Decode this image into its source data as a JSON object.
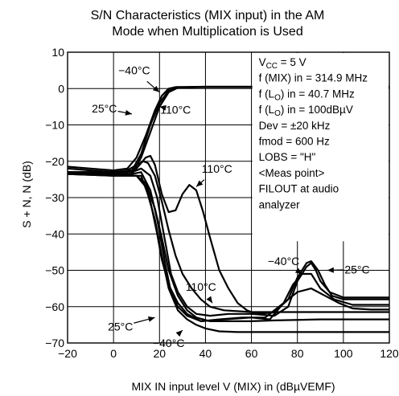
{
  "chart_data": {
    "type": "line",
    "title_lines": [
      "S/N Characteristics (MIX input) in the AM",
      "Mode when Multiplication is Used"
    ],
    "xlabel": "MIX IN input level   V (MIX) in   (dBµVEMF)",
    "ylabel": "S + N, N   (dB)",
    "xlim": [
      -20,
      120
    ],
    "ylim": [
      -70,
      10
    ],
    "xticks": [
      -20,
      0,
      20,
      40,
      60,
      80,
      100,
      120
    ],
    "yticks": [
      10,
      0,
      -10,
      -20,
      -30,
      -40,
      -50,
      -60,
      -70
    ],
    "grid": true,
    "conditions": [
      {
        "main": "V",
        "sub": "CC",
        "rest": " = 5 V"
      },
      {
        "main": "f (MIX) in = 314.9 MHz",
        "sub": "",
        "rest": ""
      },
      {
        "main": "f (L",
        "sub": "O",
        "rest": ") in = 40.7 MHz"
      },
      {
        "main": "f (L",
        "sub": "O",
        "rest": ") in = 100dBµV"
      },
      {
        "main": "Dev = ±20 kHz",
        "sub": "",
        "rest": ""
      },
      {
        "main": "fmod = 600 Hz",
        "sub": "",
        "rest": ""
      },
      {
        "main": "LOBS = \"H\"",
        "sub": "",
        "rest": ""
      },
      {
        "main": "<Meas point>",
        "sub": "",
        "rest": ""
      },
      {
        "main": "FILOUT at audio",
        "sub": "",
        "rest": ""
      },
      {
        "main": "analyzer",
        "sub": "",
        "rest": ""
      }
    ],
    "annotations": [
      {
        "text": "−40°C",
        "x": 9,
        "y": 5,
        "ax": 20,
        "ay": -1
      },
      {
        "text": "25°C",
        "x": -4,
        "y": -5.5,
        "ax": 8,
        "ay": -7
      },
      {
        "text": "110°C",
        "x": 27,
        "y": -5.8,
        "ax": 20,
        "ay": -5,
        "arrow_left": true
      },
      {
        "text": "110°C",
        "x": 45,
        "y": -22,
        "ax": 36,
        "ay": -27
      },
      {
        "text": "−40°C",
        "x": 74,
        "y": -47.5,
        "ax": 82,
        "ay": -51
      },
      {
        "text": "25°C",
        "x": 106,
        "y": -49.8,
        "ax": 93,
        "ay": -50
      },
      {
        "text": "110°C",
        "x": 38,
        "y": -54.5,
        "ax": 43,
        "ay": -59
      },
      {
        "text": "25°C",
        "x": 3,
        "y": -65.5,
        "ax": 18,
        "ay": -63
      },
      {
        "text": "−40°C",
        "x": 24,
        "y": -70,
        "ax": 30,
        "ay": -66.5
      }
    ],
    "series": [
      {
        "values": [
          [
            -20,
            -21.5
          ],
          [
            -10,
            -22
          ],
          [
            0,
            -22.5
          ],
          [
            6,
            -22
          ],
          [
            10,
            -19
          ],
          [
            14,
            -13
          ],
          [
            18,
            -6
          ],
          [
            21,
            -2
          ],
          [
            24,
            0
          ],
          [
            27,
            0.4
          ],
          [
            40,
            0.5
          ],
          [
            120,
            0.5
          ]
        ]
      },
      {
        "values": [
          [
            -20,
            -22
          ],
          [
            -10,
            -22.5
          ],
          [
            0,
            -23
          ],
          [
            8,
            -22.5
          ],
          [
            12,
            -18
          ],
          [
            16,
            -10
          ],
          [
            20,
            -4
          ],
          [
            24,
            -0.5
          ],
          [
            28,
            0.3
          ],
          [
            40,
            0.5
          ],
          [
            120,
            0.5
          ]
        ]
      },
      {
        "values": [
          [
            -20,
            -23
          ],
          [
            -10,
            -23.5
          ],
          [
            0,
            -24
          ],
          [
            8,
            -23.5
          ],
          [
            12,
            -19
          ],
          [
            16,
            -12
          ],
          [
            20,
            -5
          ],
          [
            24,
            -1
          ],
          [
            28,
            0.2
          ],
          [
            40,
            0.4
          ],
          [
            120,
            0.4
          ]
        ]
      },
      {
        "values": [
          [
            -20,
            -23
          ],
          [
            0,
            -23
          ],
          [
            6,
            -23
          ],
          [
            10,
            -22
          ],
          [
            14,
            -19
          ],
          [
            16,
            -18.5
          ],
          [
            18,
            -21
          ],
          [
            21,
            -29
          ],
          [
            24,
            -34
          ],
          [
            27,
            -33.5
          ],
          [
            30,
            -29
          ],
          [
            33,
            -26.5
          ],
          [
            36,
            -28
          ],
          [
            39,
            -34
          ],
          [
            42,
            -41
          ],
          [
            46,
            -50
          ],
          [
            50,
            -55
          ],
          [
            54,
            -59
          ],
          [
            58,
            -61
          ],
          [
            62,
            -62
          ],
          [
            72,
            -61.5
          ],
          [
            120,
            -61.5
          ]
        ]
      },
      {
        "values": [
          [
            -20,
            -23
          ],
          [
            0,
            -23
          ],
          [
            6,
            -22.5
          ],
          [
            10,
            -21
          ],
          [
            13,
            -20
          ],
          [
            15,
            -20.5
          ],
          [
            18,
            -24
          ],
          [
            21,
            -31
          ],
          [
            24,
            -39
          ],
          [
            27,
            -46
          ],
          [
            30,
            -51
          ],
          [
            34,
            -55
          ],
          [
            38,
            -58
          ],
          [
            42,
            -60
          ],
          [
            48,
            -61
          ],
          [
            60,
            -61.5
          ],
          [
            70,
            -61.5
          ],
          [
            76,
            -58
          ],
          [
            80,
            -52
          ],
          [
            84,
            -48
          ],
          [
            86,
            -47.5
          ],
          [
            89,
            -50
          ],
          [
            92,
            -54
          ],
          [
            95,
            -57
          ],
          [
            100,
            -58
          ],
          [
            110,
            -58
          ],
          [
            120,
            -58
          ]
        ]
      },
      {
        "values": [
          [
            -20,
            -23
          ],
          [
            0,
            -23
          ],
          [
            8,
            -23
          ],
          [
            12,
            -22
          ],
          [
            16,
            -24
          ],
          [
            19,
            -30
          ],
          [
            21,
            -37
          ],
          [
            23,
            -44
          ],
          [
            25,
            -51
          ],
          [
            28,
            -56
          ],
          [
            32,
            -60
          ],
          [
            36,
            -62
          ],
          [
            42,
            -62.5
          ],
          [
            50,
            -62
          ],
          [
            60,
            -62
          ],
          [
            70,
            -62.5
          ],
          [
            76,
            -60
          ],
          [
            80,
            -53
          ],
          [
            84,
            -49
          ],
          [
            86,
            -48
          ],
          [
            88,
            -50
          ],
          [
            90,
            -53
          ],
          [
            94,
            -56
          ],
          [
            100,
            -57.5
          ],
          [
            110,
            -57.5
          ],
          [
            120,
            -57.5
          ]
        ]
      },
      {
        "values": [
          [
            -20,
            -23
          ],
          [
            0,
            -23.5
          ],
          [
            8,
            -23.5
          ],
          [
            12,
            -23
          ],
          [
            16,
            -28
          ],
          [
            19,
            -36
          ],
          [
            21,
            -43
          ],
          [
            23,
            -50
          ],
          [
            25,
            -56
          ],
          [
            28,
            -60
          ],
          [
            32,
            -62.5
          ],
          [
            38,
            -64
          ],
          [
            48,
            -63.5
          ],
          [
            60,
            -63
          ],
          [
            68,
            -63.5
          ],
          [
            74,
            -59
          ],
          [
            78,
            -54
          ],
          [
            82,
            -51
          ],
          [
            86,
            -51
          ],
          [
            90,
            -55
          ],
          [
            96,
            -58
          ],
          [
            104,
            -59.5
          ],
          [
            112,
            -59.5
          ],
          [
            120,
            -59.5
          ]
        ]
      },
      {
        "values": [
          [
            -20,
            -23.5
          ],
          [
            0,
            -24
          ],
          [
            8,
            -24
          ],
          [
            12,
            -24
          ],
          [
            16,
            -31
          ],
          [
            19,
            -40
          ],
          [
            21,
            -47
          ],
          [
            24,
            -54
          ],
          [
            28,
            -59
          ],
          [
            32,
            -62
          ],
          [
            38,
            -64
          ],
          [
            46,
            -63.5
          ],
          [
            56,
            -63
          ],
          [
            66,
            -63
          ],
          [
            74,
            -59
          ],
          [
            80,
            -56
          ],
          [
            86,
            -55
          ],
          [
            92,
            -57
          ],
          [
            98,
            -59
          ],
          [
            104,
            -60.5
          ],
          [
            112,
            -60.8
          ],
          [
            120,
            -60.8
          ]
        ]
      },
      {
        "values": [
          [
            -20,
            -23
          ],
          [
            0,
            -23.5
          ],
          [
            10,
            -24
          ],
          [
            14,
            -26
          ],
          [
            18,
            -33
          ],
          [
            21,
            -41
          ],
          [
            24,
            -50
          ],
          [
            28,
            -57
          ],
          [
            32,
            -61
          ],
          [
            36,
            -63
          ],
          [
            42,
            -64
          ],
          [
            50,
            -64
          ],
          [
            60,
            -64
          ],
          [
            70,
            -63.8
          ],
          [
            90,
            -63.5
          ],
          [
            110,
            -63.5
          ],
          [
            120,
            -63.5
          ]
        ]
      },
      {
        "values": [
          [
            -20,
            -23.5
          ],
          [
            0,
            -24
          ],
          [
            10,
            -24
          ],
          [
            14,
            -27
          ],
          [
            18,
            -36
          ],
          [
            21,
            -46
          ],
          [
            24,
            -55
          ],
          [
            28,
            -61
          ],
          [
            32,
            -63.5
          ],
          [
            36,
            -65
          ],
          [
            40,
            -66
          ],
          [
            46,
            -66.8
          ],
          [
            54,
            -67
          ],
          [
            70,
            -67
          ],
          [
            90,
            -67
          ],
          [
            120,
            -67
          ]
        ]
      }
    ]
  }
}
